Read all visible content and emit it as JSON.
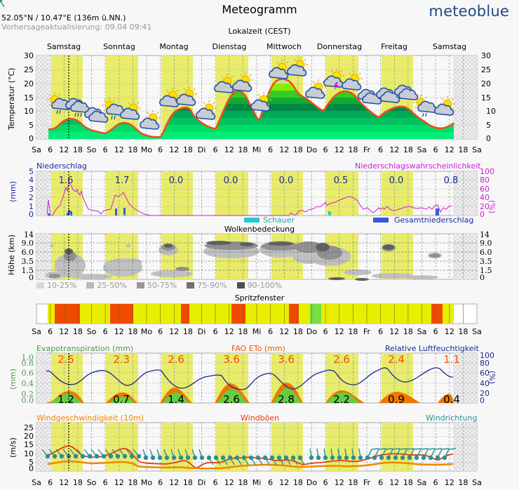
{
  "header": {
    "title": "Meteogramm",
    "brand": "meteoblue",
    "coordinates": "52.05°N / 10.47°E (136m ü.NN.)",
    "updated": "Vorhersageaktualisierung: 09.04 09:41",
    "timezone": "Lokalzeit (CEST)"
  },
  "days": [
    "Samstag",
    "Sonntag",
    "Montag",
    "Dienstag",
    "Mittwoch",
    "Donnerstag",
    "Freitag",
    "Samstag"
  ],
  "x_ticks": [
    "Sa",
    "6",
    "12",
    "18",
    "So",
    "6",
    "12",
    "18",
    "Mo",
    "6",
    "12",
    "18",
    "Di",
    "6",
    "12",
    "18",
    "Mi",
    "6",
    "12",
    "18",
    "Do",
    "6",
    "12",
    "18",
    "Fr",
    "6",
    "12",
    "18",
    "Sa",
    "6",
    "12",
    "18",
    "Sa"
  ],
  "colors": {
    "daylight": "#e8ec6a",
    "temperature_line": "#e8501a",
    "precip_prob": "#cc22cc",
    "precip_total": "#3a58d8",
    "showers": "#22cccc",
    "humidity": "#1a2a8a",
    "fao_eto": "#ee7700",
    "evapo": "#66cc44",
    "wind_speed": "#ee8800",
    "wind_gust": "#e83a10",
    "wind_dir": "#2a9090",
    "spray_good": "#77dd44",
    "spray_ok": "#e8ee00",
    "spray_bad": "#f04a00"
  },
  "temperature": {
    "ylabel": "Temperatur (°C)",
    "yticks": [
      "30",
      "25",
      "20",
      "15",
      "10",
      "5",
      "0"
    ],
    "icons": [
      "sun-cloud-rain",
      "cloud-rain",
      "cloud",
      "sun-cloud-rain",
      "sun-cloud",
      "sun-cloud",
      "sun-cloud",
      "sun-cloud",
      "sun-cloud",
      "sun-cloud",
      "sun-cloud",
      "sun-cloud",
      "sun-cloud",
      "sun-cloud-thunder",
      "sun-cloud",
      "cloud",
      "cloud",
      "cloud",
      "sun-cloud-rain",
      "sun-cloud"
    ]
  },
  "precipitation": {
    "title_left": "Niederschlag",
    "title_right": "Niederschlagswahrscheinlichkeit",
    "ylabel_left": "(mm)",
    "ylabel_right": "(%)",
    "yticks_left": [
      "5",
      "4",
      "3",
      "2",
      "1",
      "0"
    ],
    "yticks_right": [
      "100",
      "80",
      "60",
      "40",
      "20",
      "0"
    ],
    "daily_totals": [
      "1.6",
      "1.7",
      "0.0",
      "0.0",
      "0.0",
      "0.5",
      "0.0",
      "0.8"
    ],
    "legend_showers": "Schauer",
    "legend_total": "Gesamtniederschlag"
  },
  "clouds": {
    "title": "Wolkenbedeckung",
    "ylabel": "Höhe (km)",
    "yticks": [
      "14",
      "9.0",
      "6.0",
      "3.5",
      "1.5",
      "0"
    ],
    "legend": [
      "10-25%",
      "25-50%",
      "50-75%",
      "75-90%",
      "90-100%"
    ],
    "legend_colors": [
      "#d8d8d8",
      "#b8b8b8",
      "#989898",
      "#707070",
      "#505050"
    ]
  },
  "spray": {
    "title": "Spritzfenster"
  },
  "evapo": {
    "title_left": "Evapotranspiration (mm)",
    "title_center": "FAO ETo (mm)",
    "title_right": "Relative Luftfeuchtigkeit",
    "ylabel_left": "(mm)",
    "ylabel_right": "(%)",
    "yticks_left": [
      "1.0",
      "0.8",
      "0.6",
      "0.4",
      "0.2",
      "0.0"
    ],
    "yticks_right": [
      "100",
      "80",
      "60",
      "40",
      "20",
      "0"
    ],
    "fao_daily": [
      "2.5",
      "2.3",
      "2.6",
      "3.6",
      "3.6",
      "2.6",
      "2.4",
      "1.1"
    ],
    "et_daily": [
      "1.2",
      "0.7",
      "1.4",
      "2.6",
      "2.8",
      "2.2",
      "0.9",
      "0.4"
    ]
  },
  "wind": {
    "title_left": "Windgeschwindigkeit (10m)",
    "title_center": "Windböen",
    "title_right": "Windrichtung",
    "ylabel": "(m/s)",
    "yticks": [
      "25",
      "20",
      "15",
      "10",
      "5",
      "0"
    ]
  },
  "chart_data": [
    {
      "type": "area",
      "title": "Temperatur (°C)",
      "ylabel": "Temperatur (°C)",
      "ylim": [
        0,
        30
      ],
      "x": [
        "Sa 6",
        "Sa 12",
        "Sa 18",
        "So 0",
        "So 6",
        "So 12",
        "So 18",
        "Mo 0",
        "Mo 6",
        "Mo 12",
        "Mo 18",
        "Di 0",
        "Di 6",
        "Di 12",
        "Di 18",
        "Mi 0",
        "Mi 6",
        "Mi 12",
        "Mi 18",
        "Do 0",
        "Do 6",
        "Do 12",
        "Do 18",
        "Fr 0",
        "Fr 6",
        "Fr 12",
        "Fr 18",
        "Sa 0",
        "Sa 6",
        "Sa 12"
      ],
      "values": [
        3.5,
        7,
        7.5,
        3.5,
        2,
        5,
        6,
        0.5,
        0.3,
        9,
        11.5,
        6,
        3.5,
        14,
        17,
        11,
        7,
        19,
        21.5,
        14,
        10.5,
        15.5,
        17.5,
        12,
        7.5,
        11,
        12.5,
        8,
        4.5,
        6.5
      ]
    },
    {
      "type": "bar",
      "title": "Niederschlag (mm) daily totals",
      "categories": [
        "Samstag",
        "Sonntag",
        "Montag",
        "Dienstag",
        "Mittwoch",
        "Donnerstag",
        "Freitag",
        "Samstag"
      ],
      "values": [
        1.6,
        1.7,
        0.0,
        0.0,
        0.0,
        0.5,
        0.0,
        0.8
      ],
      "ylim": [
        0,
        5
      ]
    },
    {
      "type": "line",
      "title": "Niederschlagswahrscheinlichkeit (%)",
      "ylim": [
        0,
        100
      ],
      "x": [
        "Sa 0",
        "Sa 6",
        "Sa 12",
        "Sa 18",
        "So 0",
        "So 6",
        "So 12",
        "So 18",
        "Mo 0",
        "Mo 12",
        "Di 12",
        "Mi 12",
        "Do 0",
        "Do 12",
        "Do 18",
        "Fr 0",
        "Fr 12",
        "Sa 0",
        "Sa 6",
        "Sa 12"
      ],
      "values": [
        30,
        10,
        55,
        45,
        10,
        15,
        45,
        15,
        0,
        0,
        0,
        5,
        15,
        30,
        40,
        20,
        20,
        20,
        30,
        20
      ]
    },
    {
      "type": "bar",
      "title": "FAO ETo (mm) / Evapotranspiration (mm) daily",
      "categories": [
        "Samstag",
        "Sonntag",
        "Montag",
        "Dienstag",
        "Mittwoch",
        "Donnerstag",
        "Freitag",
        "Samstag"
      ],
      "series": [
        {
          "name": "FAO ETo (mm)",
          "values": [
            2.5,
            2.3,
            2.6,
            3.6,
            3.6,
            2.6,
            2.4,
            1.1
          ]
        },
        {
          "name": "Evapotranspiration (mm)",
          "values": [
            1.2,
            0.7,
            1.4,
            2.6,
            2.8,
            2.2,
            0.9,
            0.4
          ]
        }
      ]
    },
    {
      "type": "line",
      "title": "Relative Luftfeuchtigkeit (%)",
      "ylim": [
        0,
        100
      ],
      "x": [
        "Sa 0",
        "Sa 18",
        "So 6",
        "So 18",
        "Mo 6",
        "Mo 18",
        "Di 6",
        "Di 18",
        "Mi 6",
        "Mi 18",
        "Do 6",
        "Do 18",
        "Fr 6",
        "Fr 18",
        "Sa 6",
        "Sa 12"
      ],
      "values": [
        65,
        35,
        65,
        38,
        68,
        28,
        60,
        25,
        62,
        28,
        70,
        40,
        75,
        45,
        72,
        55
      ]
    },
    {
      "type": "line",
      "title": "Wind (m/s)",
      "ylim": [
        0,
        28
      ],
      "x": [
        "Sa 6",
        "Sa 12",
        "Sa 18",
        "So 6",
        "So 12",
        "So 18",
        "Mo 6",
        "Mo 18",
        "Di 0",
        "Di 12",
        "Di 18",
        "Mi 12",
        "Do 6",
        "Do 18",
        "Fr 12",
        "Sa 6",
        "Sa 12"
      ],
      "series": [
        {
          "name": "Windböen",
          "values": [
            10,
            15,
            11,
            10,
            14,
            7,
            6,
            7,
            2,
            8,
            7,
            5,
            4,
            6,
            9,
            6,
            8
          ]
        },
        {
          "name": "Windgeschwindigkeit (10m)",
          "values": [
            5,
            7,
            5,
            5,
            6,
            2,
            2,
            1,
            1,
            3,
            4,
            3,
            2,
            4,
            6,
            4,
            5
          ]
        }
      ]
    }
  ]
}
